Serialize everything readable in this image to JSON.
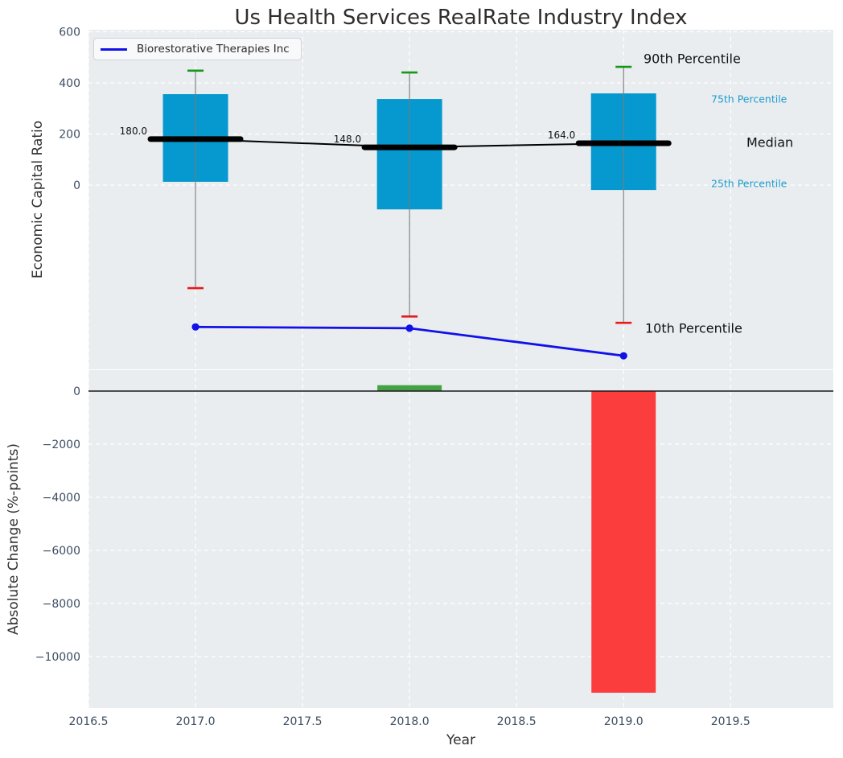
{
  "title": "Us Health Services RealRate Industry Index",
  "colors": {
    "axes_background": "#e9edf0",
    "grid": "#ffffff",
    "tick_label": "#3d4d63",
    "box_fill": "#0599cf",
    "whisker": "#7b7b7b",
    "p90_cap": "#179617",
    "p10_cap": "#e61a1a",
    "median": "#000000",
    "company_line": "#1111e8",
    "bar_positive": "#44a244",
    "bar_negative": "#fb3d3d",
    "zero_line": "#1a1a1a",
    "annotation_blue": "#209ccd",
    "annotation_black": "#111111"
  },
  "chart_data": [
    {
      "type": "box",
      "title": "Us Health Services RealRate Industry Index",
      "ylabel": "Economic Capital Ratio",
      "xlim": [
        2016.5,
        2019.98
      ],
      "ylim": [
        -721,
        608
      ],
      "grid": true,
      "yticks": {
        "values": [
          0,
          200,
          400,
          600
        ],
        "labels": [
          "0",
          "200",
          "400",
          "600"
        ]
      },
      "legend": {
        "position": "upper left",
        "entries": [
          {
            "label": "Biorestorative Therapies Inc",
            "color": "#1111e8"
          }
        ]
      },
      "boxes": [
        {
          "year": 2017,
          "p90": 448,
          "p75": 356,
          "median": 180,
          "p25": 13,
          "p10": -403,
          "median_label": "180.0"
        },
        {
          "year": 2018,
          "p90": 441,
          "p75": 337,
          "median": 148,
          "p25": -95,
          "p10": -514,
          "median_label": "148.0"
        },
        {
          "year": 2019,
          "p90": 463,
          "p75": 359,
          "median": 164,
          "p25": -19,
          "p10": -539,
          "median_label": "164.0"
        }
      ],
      "company_series": {
        "name": "Biorestorative Therapies Inc",
        "x": [
          2017,
          2018,
          2019
        ],
        "y_display": [
          -555,
          -560,
          -668
        ]
      },
      "annotations": [
        {
          "id": "p90",
          "text": "90th Percentile",
          "color": "#111111",
          "size": 16
        },
        {
          "id": "p75",
          "text": "75th Percentile",
          "color": "#209ccd",
          "size": 12.5
        },
        {
          "id": "median",
          "text": "Median",
          "color": "#111111",
          "size": 16
        },
        {
          "id": "p25",
          "text": "25th Percentile",
          "color": "#209ccd",
          "size": 12.5
        },
        {
          "id": "p10",
          "text": "10th Percentile",
          "color": "#111111",
          "size": 16
        }
      ]
    },
    {
      "type": "bar",
      "ylabel": "Absolute Change (%-points)",
      "xlabel": "Year",
      "categories": [
        2018,
        2019
      ],
      "values": [
        222,
        -11360
      ],
      "bar_colors": [
        "#44a244",
        "#fb3d3d"
      ],
      "ylim": [
        -11940,
        788
      ],
      "grid": true,
      "zero_line": true,
      "yticks": {
        "values": [
          0,
          -2000,
          -4000,
          -6000,
          -8000,
          -10000
        ],
        "labels": [
          "0",
          "−2000",
          "−4000",
          "−6000",
          "−8000",
          "−10000"
        ]
      },
      "xticks": {
        "values": [
          2016.5,
          2017.0,
          2017.5,
          2018.0,
          2018.5,
          2019.0,
          2019.5
        ],
        "labels": [
          "2016.5",
          "2017.0",
          "2017.5",
          "2018.0",
          "2018.5",
          "2019.0",
          "2019.5"
        ]
      }
    }
  ]
}
